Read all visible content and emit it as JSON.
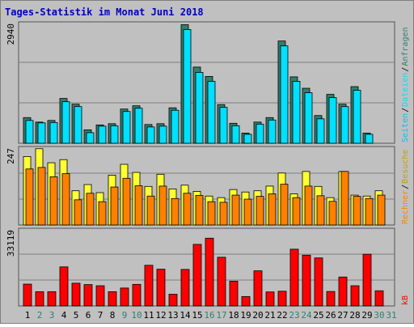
{
  "title": "Tages-Statistik im Monat Juni 2018",
  "colors": {
    "background": "#c0c0c0",
    "title": "#0000c0",
    "anfragen": "#2f7f6f",
    "dateien": "#00e0ff",
    "seiten": "#00c0ff",
    "besuche": "#ffff33",
    "rechner": "#ff8000",
    "kb": "#ff0000",
    "weekend_label": "#2f7f6f",
    "day_label": "#000000"
  },
  "right_labels": {
    "anfragen": "Anfragen",
    "dateien": "Dateien",
    "seiten": "Seiten",
    "besuche": "Besuche",
    "rechner": "Rechner",
    "kb": "kB",
    "sep": "/"
  },
  "chart_data": [
    {
      "type": "bar",
      "panel": "top",
      "ymax_label": "2940",
      "ylim": [
        0,
        2940
      ],
      "x": [
        1,
        2,
        3,
        4,
        5,
        6,
        7,
        8,
        9,
        10,
        11,
        12,
        13,
        14,
        15,
        16,
        17,
        18,
        19,
        20,
        21,
        22,
        23,
        24,
        25,
        26,
        27,
        28,
        29,
        30
      ],
      "series": [
        {
          "name": "Anfragen",
          "values": [
            630,
            520,
            560,
            1100,
            960,
            330,
            450,
            480,
            840,
            920,
            460,
            480,
            870,
            2910,
            1870,
            1640,
            950,
            490,
            250,
            520,
            630,
            2510,
            1630,
            1350,
            680,
            1200,
            960,
            1390,
            250,
            0
          ]
        },
        {
          "name": "Dateien",
          "values": [
            560,
            500,
            510,
            1020,
            900,
            260,
            420,
            430,
            780,
            860,
            400,
            420,
            810,
            2790,
            1740,
            1520,
            880,
            430,
            220,
            470,
            570,
            2390,
            1520,
            1240,
            600,
            1120,
            900,
            1300,
            220,
            0
          ]
        }
      ]
    },
    {
      "type": "bar",
      "panel": "middle",
      "ymax_label": "247",
      "ylim": [
        0,
        247
      ],
      "x": [
        1,
        2,
        3,
        4,
        5,
        6,
        7,
        8,
        9,
        10,
        11,
        12,
        13,
        14,
        15,
        16,
        17,
        18,
        19,
        20,
        21,
        22,
        23,
        24,
        25,
        26,
        27,
        28,
        29,
        30
      ],
      "series": [
        {
          "name": "Besuche",
          "values": [
            220,
            245,
            200,
            210,
            110,
            130,
            104,
            160,
            195,
            169,
            124,
            163,
            116,
            128,
            108,
            93,
            88,
            114,
            106,
            110,
            125,
            167,
            100,
            172,
            124,
            88,
            172,
            96,
            93,
            110
          ]
        },
        {
          "name": "Rechner",
          "values": [
            180,
            185,
            155,
            165,
            81,
            102,
            75,
            122,
            150,
            126,
            93,
            125,
            85,
            102,
            95,
            75,
            73,
            96,
            83,
            92,
            100,
            131,
            88,
            125,
            94,
            76,
            172,
            92,
            85,
            96
          ]
        }
      ]
    },
    {
      "type": "bar",
      "panel": "bottom",
      "ymax_label": "33119",
      "ylim": [
        0,
        33119
      ],
      "x": [
        1,
        2,
        3,
        4,
        5,
        6,
        7,
        8,
        9,
        10,
        11,
        12,
        13,
        14,
        15,
        16,
        17,
        18,
        19,
        20,
        21,
        22,
        23,
        24,
        25,
        26,
        27,
        28,
        29,
        30
      ],
      "series": [
        {
          "name": "kB",
          "values": [
            9500,
            6200,
            6200,
            17000,
            9900,
            9300,
            8800,
            6200,
            7800,
            9400,
            17700,
            16000,
            5100,
            15900,
            26800,
            29500,
            21200,
            10800,
            4100,
            15300,
            6100,
            6400,
            24700,
            22100,
            20900,
            6300,
            12600,
            8800,
            22500,
            6600
          ]
        }
      ]
    }
  ],
  "day_labels": [
    "1",
    "2",
    "3",
    "4",
    "5",
    "6",
    "7",
    "8",
    "9",
    "10",
    "11",
    "12",
    "13",
    "14",
    "15",
    "16",
    "17",
    "18",
    "19",
    "20",
    "21",
    "22",
    "23",
    "24",
    "25",
    "26",
    "27",
    "28",
    "29",
    "30",
    "31"
  ],
  "weekend_days": [
    2,
    3,
    9,
    10,
    16,
    17,
    23,
    24,
    30,
    31
  ]
}
